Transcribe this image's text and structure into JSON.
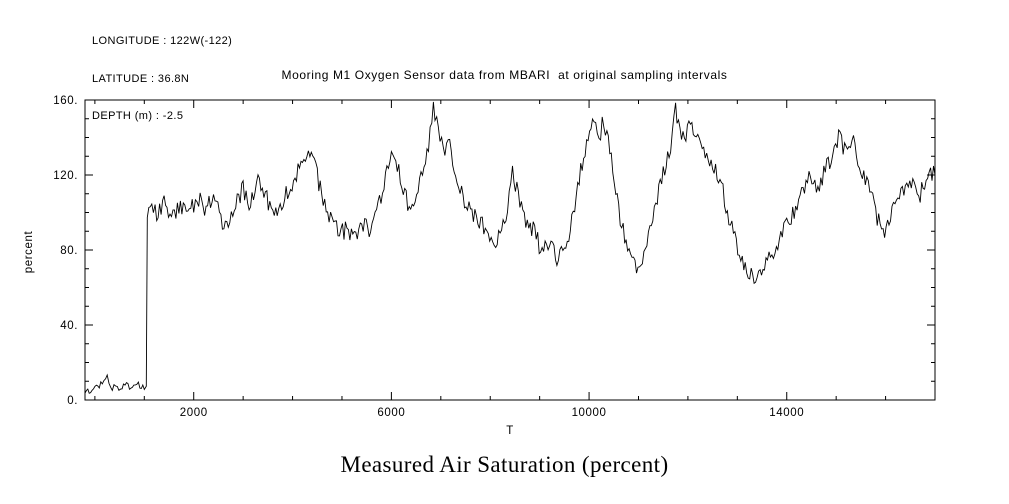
{
  "header": {
    "longitude": "LONGITUDE : 122W(-122)",
    "latitude": "LATITUDE : 36.8N",
    "depth": "DEPTH (m) : -2.5"
  },
  "title": "Mooring M1 Oxygen Sensor data from MBARI  at original sampling intervals",
  "caption": "Measured Air Saturation (percent)",
  "chart_data": {
    "type": "line",
    "title": "Mooring M1 Oxygen Sensor data from MBARI  at original sampling intervals",
    "xlabel": "T",
    "ylabel": "percent",
    "xlim": [
      -200,
      17000
    ],
    "ylim": [
      0,
      160
    ],
    "x_major_ticks": [
      2000,
      6000,
      10000,
      14000
    ],
    "x_minor_step": 1000,
    "y_major_ticks": [
      0,
      40,
      80,
      120,
      160
    ],
    "y_minor_step": 10,
    "y_tick_label_suffix": ".",
    "line_color": "#000000",
    "background": "#ffffff",
    "grid": false,
    "legend": "none",
    "noise_amplitude": 5,
    "series": [
      {
        "name": "air_saturation_percent",
        "x": [
          -200,
          0,
          150,
          250,
          320,
          420,
          520,
          640,
          760,
          880,
          1000,
          1040,
          1060,
          1120,
          1250,
          1400,
          1550,
          1700,
          1850,
          2000,
          2100,
          2250,
          2400,
          2550,
          2700,
          2850,
          3000,
          3150,
          3300,
          3450,
          3600,
          3750,
          3900,
          4050,
          4200,
          4350,
          4500,
          4650,
          4800,
          4950,
          5100,
          5250,
          5400,
          5550,
          5700,
          5850,
          6000,
          6150,
          6300,
          6450,
          6600,
          6750,
          6850,
          6950,
          7050,
          7150,
          7300,
          7450,
          7600,
          7750,
          7900,
          8050,
          8200,
          8350,
          8450,
          8600,
          8750,
          8900,
          9050,
          9200,
          9350,
          9500,
          9650,
          9800,
          9950,
          10100,
          10200,
          10300,
          10450,
          10600,
          10750,
          10900,
          11050,
          11200,
          11350,
          11500,
          11650,
          11750,
          11900,
          12050,
          12200,
          12350,
          12500,
          12650,
          12800,
          12950,
          13100,
          13250,
          13400,
          13550,
          13700,
          13850,
          14000,
          14150,
          14300,
          14450,
          14600,
          14750,
          14900,
          15050,
          15200,
          15350,
          15500,
          15650,
          15800,
          15950,
          16100,
          16250,
          16400,
          16550,
          16700,
          16850,
          17000
        ],
        "y": [
          4,
          6,
          9,
          15,
          6,
          8,
          5,
          9,
          6,
          8,
          7,
          8,
          96,
          103,
          99,
          104,
          98,
          103,
          100,
          105,
          108,
          102,
          110,
          96,
          90,
          107,
          112,
          103,
          118,
          110,
          98,
          104,
          112,
          118,
          126,
          133,
          119,
          105,
          96,
          88,
          92,
          85,
          94,
          90,
          100,
          114,
          129,
          121,
          107,
          100,
          118,
          136,
          155,
          147,
          131,
          139,
          119,
          107,
          100,
          96,
          91,
          87,
          85,
          101,
          124,
          104,
          95,
          89,
          78,
          86,
          72,
          81,
          95,
          119,
          136,
          148,
          140,
          150,
          128,
          100,
          85,
          74,
          70,
          91,
          106,
          121,
          137,
          155,
          140,
          146,
          137,
          131,
          125,
          119,
          100,
          85,
          75,
          67,
          63,
          70,
          78,
          86,
          95,
          101,
          109,
          118,
          112,
          121,
          129,
          140,
          132,
          138,
          124,
          114,
          100,
          88,
          96,
          108,
          113,
          118,
          110,
          122,
          120
        ]
      }
    ]
  }
}
